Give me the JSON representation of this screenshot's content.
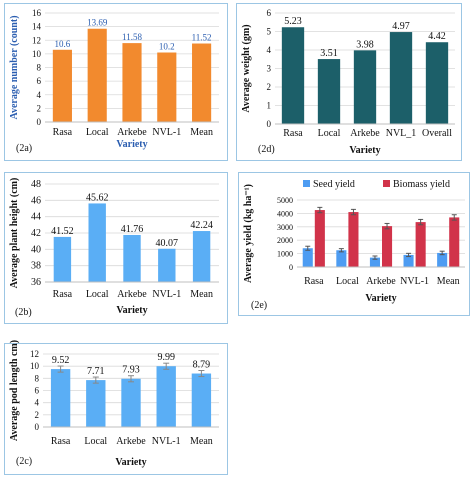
{
  "colors": {
    "orange": "#f28a2e",
    "dark_teal": "#1c5f69",
    "light_blue": "#5aaef5",
    "seed_blue": "#4d9cf2",
    "biomass_red": "#d1334a",
    "blue_label": "#2a5db0",
    "border": "#9cc6e4",
    "grid": "#d9d9d9"
  },
  "panel_labels": {
    "a": "(2a)",
    "b": "(2b)",
    "c": "(2c)",
    "d": "(2d)",
    "e": "(2e)"
  },
  "chart_data": [
    {
      "id": "2a",
      "type": "bar",
      "categories": [
        "Rasa",
        "Local",
        "Arkebe",
        "NVL-1",
        "Mean"
      ],
      "values": [
        10.6,
        13.69,
        11.58,
        10.2,
        11.52
      ],
      "value_labels": [
        "10.6",
        "13.69",
        "11.58",
        "10.2",
        "11.52"
      ],
      "ylabel": "Average number (count)",
      "xlabel": "Variety",
      "ylim": [
        0,
        16
      ],
      "yticks": [
        "0",
        "2",
        "4",
        "6",
        "8",
        "10",
        "12",
        "14",
        "16"
      ],
      "grid": true,
      "color": "#f28a2e",
      "label_color": "#2a5db0"
    },
    {
      "id": "2b",
      "type": "bar",
      "categories": [
        "Rasa",
        "Local",
        "Arkebe",
        "NVL-1",
        "Mean"
      ],
      "values": [
        41.52,
        45.62,
        41.76,
        40.07,
        42.24
      ],
      "value_labels": [
        "41.52",
        "45.62",
        "41.76",
        "40.07",
        "42.24"
      ],
      "ylabel": "Average plant height (cm)",
      "xlabel": "Variety",
      "ylim": [
        36,
        48
      ],
      "yticks": [
        "36",
        "38",
        "40",
        "42",
        "44",
        "46",
        "48"
      ],
      "grid": true,
      "color": "#5aaef5",
      "label_color": "#111111"
    },
    {
      "id": "2c",
      "type": "bar",
      "categories": [
        "Rasa",
        "Local",
        "Arkebe",
        "NVL-1",
        "Mean"
      ],
      "values": [
        9.52,
        7.71,
        7.93,
        9.99,
        8.79
      ],
      "errors": [
        0.5,
        0.5,
        0.5,
        0.5,
        0.5
      ],
      "value_labels": [
        "9.52",
        "7.71",
        "7.93",
        "9.99",
        "8.79"
      ],
      "ylabel": "Average pod length cm)",
      "xlabel": "Variety",
      "ylim": [
        0,
        12
      ],
      "yticks": [
        "0",
        "2",
        "4",
        "6",
        "8",
        "10",
        "12"
      ],
      "grid": true,
      "color": "#5aaef5",
      "label_color": "#111111"
    },
    {
      "id": "2d",
      "type": "bar",
      "categories": [
        "Rasa",
        "Local",
        "Arkebe",
        "NVL_1",
        "Overall"
      ],
      "values": [
        5.23,
        3.51,
        3.98,
        4.97,
        4.42
      ],
      "value_labels": [
        "5.23",
        "3.51",
        "3.98",
        "4.97",
        "4.42"
      ],
      "ylabel": "Average weight (gm)",
      "xlabel": "Variety",
      "ylim": [
        0,
        6
      ],
      "yticks": [
        "0",
        "1",
        "2",
        "3",
        "4",
        "5",
        "6"
      ],
      "grid": true,
      "color": "#1c5f69",
      "label_color": "#111111"
    },
    {
      "id": "2e",
      "type": "bar",
      "categories": [
        "Rasa",
        "Local",
        "Arkebe",
        "NVL-1",
        "Mean"
      ],
      "series": [
        {
          "name": "Seed yield",
          "values": [
            1400,
            1250,
            700,
            900,
            1050
          ],
          "errors": [
            150,
            120,
            120,
            120,
            130
          ],
          "color": "#4d9cf2"
        },
        {
          "name": "Biomass yield",
          "values": [
            4250,
            4100,
            3050,
            3350,
            3700
          ],
          "errors": [
            200,
            200,
            200,
            200,
            200
          ],
          "color": "#d1334a"
        }
      ],
      "ylabel": "Average yield (kg ha⁻¹)",
      "xlabel": "Variety",
      "ylim": [
        0,
        5000
      ],
      "yticks": [
        "0",
        "1000",
        "2000",
        "3000",
        "4000",
        "5000"
      ],
      "grid": true,
      "legend": "top"
    }
  ]
}
